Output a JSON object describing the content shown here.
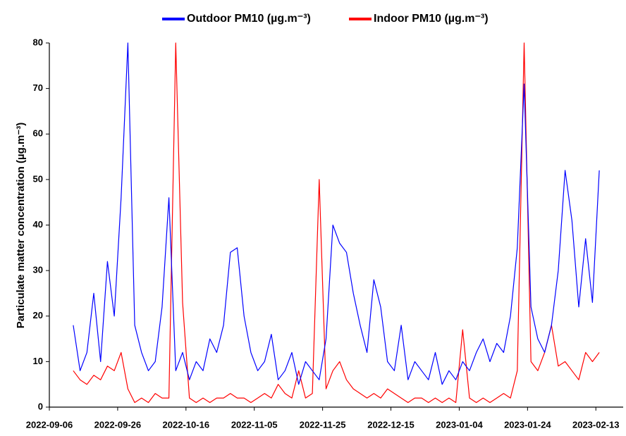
{
  "chart_data": {
    "type": "line",
    "y_label": "Particulate matter concentration (µg.m⁻³)",
    "x": [
      "2022-09-13",
      "2022-09-15",
      "2022-09-17",
      "2022-09-19",
      "2022-09-21",
      "2022-09-23",
      "2022-09-25",
      "2022-09-27",
      "2022-09-29",
      "2022-10-01",
      "2022-10-03",
      "2022-10-05",
      "2022-10-07",
      "2022-10-09",
      "2022-10-11",
      "2022-10-13",
      "2022-10-15",
      "2022-10-17",
      "2022-10-19",
      "2022-10-21",
      "2022-10-23",
      "2022-10-25",
      "2022-10-27",
      "2022-10-29",
      "2022-10-31",
      "2022-11-02",
      "2022-11-04",
      "2022-11-06",
      "2022-11-08",
      "2022-11-10",
      "2022-11-12",
      "2022-11-14",
      "2022-11-16",
      "2022-11-18",
      "2022-11-20",
      "2022-11-22",
      "2022-11-24",
      "2022-11-26",
      "2022-11-28",
      "2022-11-30",
      "2022-12-02",
      "2022-12-04",
      "2022-12-06",
      "2022-12-08",
      "2022-12-10",
      "2022-12-12",
      "2022-12-14",
      "2022-12-16",
      "2022-12-18",
      "2022-12-20",
      "2022-12-22",
      "2022-12-24",
      "2022-12-26",
      "2022-12-28",
      "2022-12-30",
      "2023-01-01",
      "2023-01-03",
      "2023-01-05",
      "2023-01-07",
      "2023-01-09",
      "2023-01-11",
      "2023-01-13",
      "2023-01-15",
      "2023-01-17",
      "2023-01-19",
      "2023-01-21",
      "2023-01-23",
      "2023-01-25",
      "2023-01-27",
      "2023-01-29",
      "2023-01-31",
      "2023-02-02",
      "2023-02-04",
      "2023-02-06",
      "2023-02-08",
      "2023-02-10",
      "2023-02-12",
      "2023-02-14"
    ],
    "series": [
      {
        "name": "Outdoor PM10 (µg.m⁻³)",
        "color": "#0000ff",
        "values": [
          18,
          8,
          12,
          25,
          10,
          32,
          20,
          46,
          80,
          18,
          12,
          8,
          10,
          22,
          46,
          8,
          12,
          6,
          10,
          8,
          15,
          12,
          18,
          34,
          35,
          20,
          12,
          8,
          10,
          16,
          6,
          8,
          12,
          5,
          10,
          8,
          6,
          15,
          40,
          36,
          34,
          25,
          18,
          12,
          28,
          22,
          10,
          8,
          18,
          6,
          10,
          8,
          6,
          12,
          5,
          8,
          6,
          10,
          8,
          12,
          15,
          10,
          14,
          12,
          20,
          35,
          71,
          22,
          15,
          12,
          18,
          30,
          52,
          41,
          22,
          37,
          23,
          52
        ]
      },
      {
        "name": "Indoor PM10 (µg.m⁻³)",
        "color": "#ff0000",
        "values": [
          8,
          6,
          5,
          7,
          6,
          9,
          8,
          12,
          4,
          1,
          2,
          1,
          3,
          2,
          2,
          80,
          23,
          2,
          1,
          2,
          1,
          2,
          2,
          3,
          2,
          2,
          1,
          2,
          3,
          2,
          5,
          3,
          2,
          8,
          2,
          3,
          50,
          4,
          8,
          10,
          6,
          4,
          3,
          2,
          3,
          2,
          4,
          3,
          2,
          1,
          2,
          2,
          1,
          2,
          1,
          2,
          1,
          17,
          2,
          1,
          2,
          1,
          2,
          3,
          2,
          8,
          80,
          10,
          8,
          12,
          18,
          9,
          10,
          8,
          6,
          12,
          10,
          12
        ]
      }
    ],
    "xlim": [
      "2022-09-06",
      "2023-02-21"
    ],
    "xticks": [
      "2022-09-06",
      "2022-09-26",
      "2022-10-16",
      "2022-11-05",
      "2022-11-25",
      "2022-12-15",
      "2023-01-04",
      "2023-01-24",
      "2023-02-13"
    ],
    "ylim": [
      0,
      80
    ],
    "yticks": [
      0,
      10,
      20,
      30,
      40,
      50,
      60,
      70,
      80
    ],
    "legend": "top"
  }
}
